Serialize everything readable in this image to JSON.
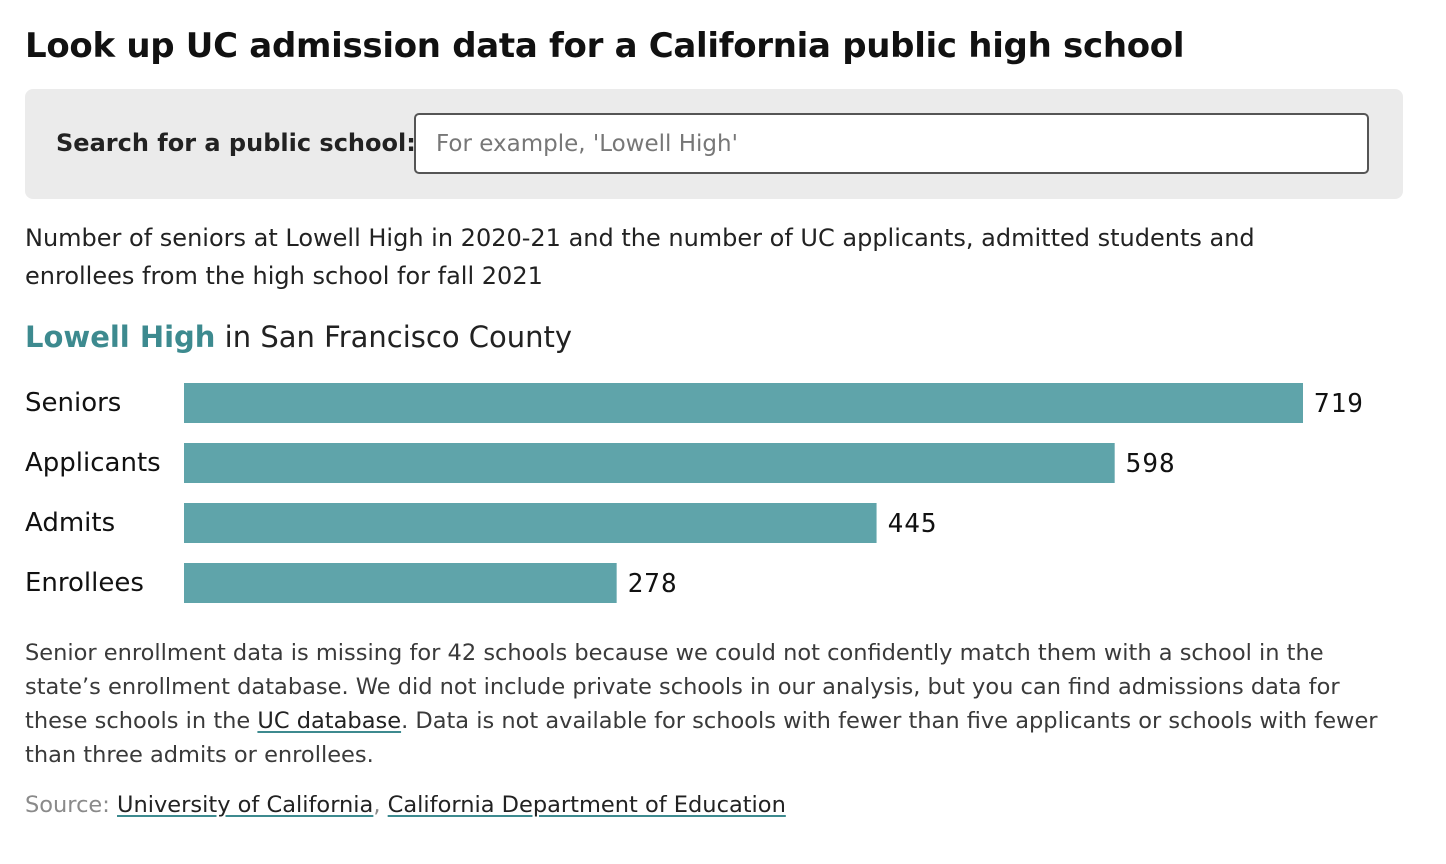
{
  "header": {
    "title": "Look up UC admission data for a California public high school"
  },
  "search": {
    "label": "Search for a public school:",
    "value": "",
    "placeholder": "For example, 'Lowell High'"
  },
  "description": "Number of seniors at Lowell High in 2020-21 and the number of UC applicants, admitted students and enrollees from the high school for fall 2021",
  "school": {
    "name": "Lowell High",
    "county_text": " in San Francisco County"
  },
  "chart_data": {
    "type": "bar",
    "orientation": "horizontal",
    "title": "",
    "xlabel": "",
    "ylabel": "",
    "categories": [
      "Seniors",
      "Applicants",
      "Admits",
      "Enrollees"
    ],
    "values": [
      719,
      598,
      445,
      278
    ],
    "value_labels": [
      "719",
      "598",
      "445",
      "278"
    ],
    "xlim": [
      0,
      719
    ],
    "grid": false,
    "bar_color": "#5fa4aa"
  },
  "note": {
    "text_before_link": "Senior enrollment data is missing for 42 schools because we could not confidently match them with a school in the state’s enrollment database. We did not include private schools in our analysis, but you can find admissions data for these schools in the ",
    "link_label": "UC database",
    "text_after_link": ". Data is not available for schools with fewer than five applicants or schools with fewer than three admits or enrollees."
  },
  "source": {
    "prefix": "Source: ",
    "links": [
      "University of California",
      "California Department of Education"
    ],
    "separator": ", "
  },
  "colors": {
    "accent": "#3d8a8f",
    "bar": "#5fa4aa",
    "panel": "#ebebeb"
  }
}
